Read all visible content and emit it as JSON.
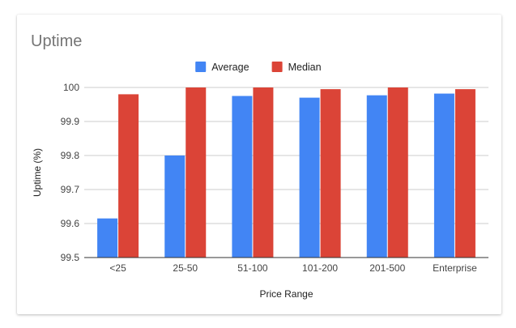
{
  "chart_data": {
    "type": "bar",
    "title": "Uptime",
    "xlabel": "Price Range",
    "ylabel": "Uptime (%)",
    "categories": [
      "<25",
      "25-50",
      "51-100",
      "101-200",
      "201-500",
      "Enterprise"
    ],
    "series": [
      {
        "name": "Average",
        "color": "#4285f4",
        "values": [
          99.615,
          99.8,
          99.975,
          99.97,
          99.977,
          99.982
        ]
      },
      {
        "name": "Median",
        "color": "#db4437",
        "values": [
          99.98,
          100.0,
          100.0,
          99.995,
          100.0,
          99.995
        ]
      }
    ],
    "ylim": [
      99.5,
      100
    ],
    "yticks": [
      "99.5",
      "99.6",
      "99.7",
      "99.8",
      "99.9",
      "100"
    ],
    "grid": true,
    "legend_position": "top-center"
  }
}
